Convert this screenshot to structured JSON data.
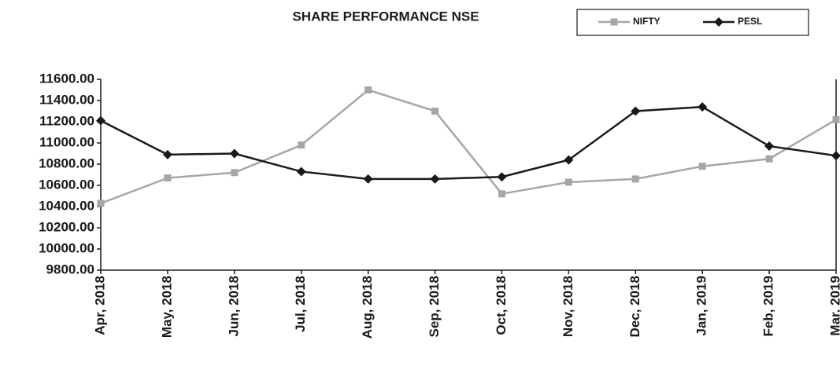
{
  "chart_data": {
    "type": "line",
    "title": "SHARE PERFORMANCE NSE",
    "categories": [
      "Apr, 2018",
      "May, 2018",
      "Jun, 2018",
      "Jul, 2018",
      "Aug, 2018",
      "Sep, 2018",
      "Oct, 2018",
      "Nov, 2018",
      "Dec, 2018",
      "Jan, 2019",
      "Feb, 2019",
      "Mar. 2019"
    ],
    "series": [
      {
        "name": "NIFTY",
        "color": "#a6a6a6",
        "marker": "square",
        "values": [
          10430,
          10670,
          10720,
          10980,
          11500,
          11300,
          10520,
          10630,
          10660,
          10780,
          10850,
          11220
        ]
      },
      {
        "name": "PESL",
        "color": "#1a1a1a",
        "marker": "diamond",
        "values": [
          11210,
          10890,
          10900,
          10730,
          10660,
          10660,
          10680,
          10840,
          11300,
          11340,
          10970,
          10880
        ]
      }
    ],
    "ylim": [
      9800,
      11600
    ],
    "yticks": [
      {
        "value": 9800,
        "label": "9800.00"
      },
      {
        "value": 10000,
        "label": "10000.00"
      },
      {
        "value": 10200,
        "label": "10200.00"
      },
      {
        "value": 10400,
        "label": "10400.00"
      },
      {
        "value": 10600,
        "label": "10600.00"
      },
      {
        "value": 10800,
        "label": "10800.00"
      },
      {
        "value": 11000,
        "label": "11000.00"
      },
      {
        "value": 11200,
        "label": "11200.00"
      },
      {
        "value": 11400,
        "label": "11400.00"
      },
      {
        "value": 11600,
        "label": "11600.00"
      }
    ],
    "grid": false,
    "legend": "top-right"
  }
}
